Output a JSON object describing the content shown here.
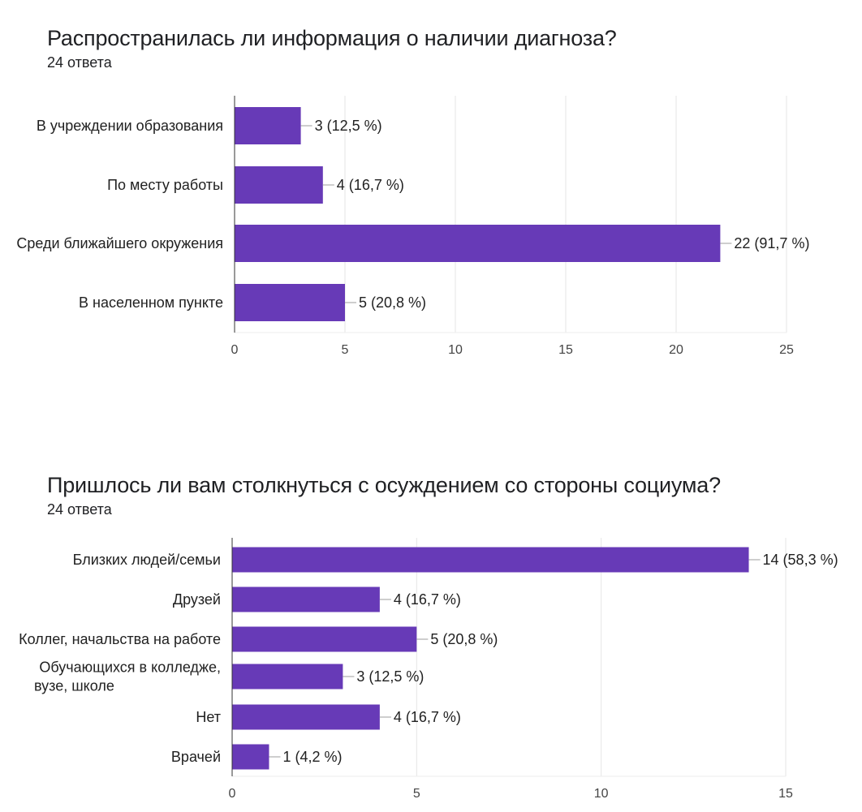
{
  "chart_data": [
    {
      "type": "bar",
      "orientation": "horizontal",
      "title": "Распространилась ли информация о наличии диагноза?",
      "subtitle": "24 ответа",
      "categories": [
        [
          "В учреждении образования"
        ],
        [
          "По месту работы"
        ],
        [
          "Среди ближайшего окружения"
        ],
        [
          "В населенном пункте"
        ]
      ],
      "values": [
        3,
        4,
        22,
        5
      ],
      "value_labels": [
        "3 (12,5 %)",
        "4 (16,7 %)",
        "22 (91,7 %)",
        "5 (20,8 %)"
      ],
      "xlim": [
        0,
        25
      ],
      "xticks": [
        "0",
        "5",
        "10",
        "15",
        "20",
        "25"
      ],
      "grid": true,
      "bar_color": "#673ab7"
    },
    {
      "type": "bar",
      "orientation": "horizontal",
      "title": "Пришлось ли вам столкнуться с осуждением со стороны социума?",
      "subtitle": "24 ответа",
      "categories": [
        [
          "Близких людей/семьи"
        ],
        [
          "Друзей"
        ],
        [
          "Коллег, начальства на работе"
        ],
        [
          "Обучающихся в колледже,",
          "вузе, школе"
        ],
        [
          "Нет"
        ],
        [
          "Врачей"
        ]
      ],
      "values": [
        14,
        4,
        5,
        3,
        4,
        1
      ],
      "value_labels": [
        "14 (58,3 %)",
        "4 (16,7 %)",
        "5 (20,8 %)",
        "3 (12,5 %)",
        "4 (16,7 %)",
        "1 (4,2 %)"
      ],
      "xlim": [
        0,
        15
      ],
      "xticks": [
        "0",
        "5",
        "10",
        "15"
      ],
      "grid": true,
      "bar_color": "#673ab7"
    }
  ]
}
